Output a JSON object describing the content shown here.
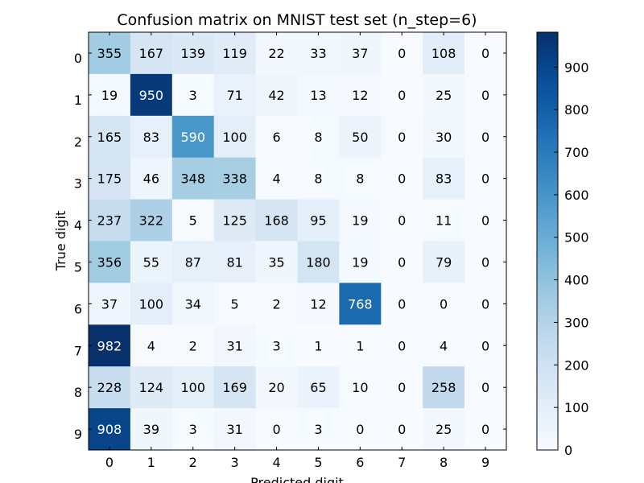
{
  "chart_data": {
    "type": "heatmap",
    "title": "Confusion matrix on MNIST test set (n_step=6)",
    "xlabel": "Predicted digit",
    "ylabel": "True digit",
    "x_categories": [
      "0",
      "1",
      "2",
      "3",
      "4",
      "5",
      "6",
      "7",
      "8",
      "9"
    ],
    "y_categories": [
      "0",
      "1",
      "2",
      "3",
      "4",
      "5",
      "6",
      "7",
      "8",
      "9"
    ],
    "matrix": [
      [
        355,
        167,
        139,
        119,
        22,
        33,
        37,
        0,
        108,
        0
      ],
      [
        19,
        950,
        3,
        71,
        42,
        13,
        12,
        0,
        25,
        0
      ],
      [
        165,
        83,
        590,
        100,
        6,
        8,
        50,
        0,
        30,
        0
      ],
      [
        175,
        46,
        348,
        338,
        4,
        8,
        8,
        0,
        83,
        0
      ],
      [
        237,
        322,
        5,
        125,
        168,
        95,
        19,
        0,
        11,
        0
      ],
      [
        356,
        55,
        87,
        81,
        35,
        180,
        19,
        0,
        79,
        0
      ],
      [
        37,
        100,
        34,
        5,
        2,
        12,
        768,
        0,
        0,
        0
      ],
      [
        982,
        4,
        2,
        31,
        3,
        1,
        1,
        0,
        4,
        0
      ],
      [
        228,
        124,
        100,
        169,
        20,
        65,
        10,
        0,
        258,
        0
      ],
      [
        908,
        39,
        3,
        31,
        0,
        3,
        0,
        0,
        25,
        0
      ]
    ],
    "colormap": "Blues",
    "vmin": 0,
    "vmax": 982,
    "colorbar_ticks": [
      "0",
      "100",
      "200",
      "300",
      "400",
      "500",
      "600",
      "700",
      "800",
      "900"
    ]
  }
}
